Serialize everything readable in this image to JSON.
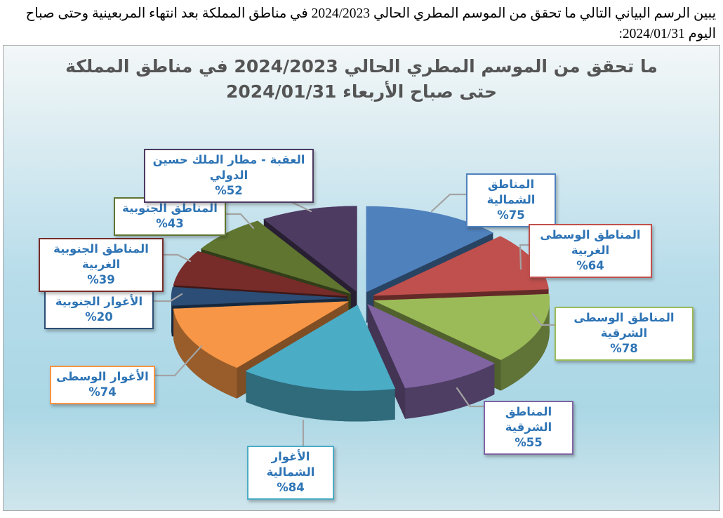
{
  "page": {
    "description_line1": "يبين الرسم البياني التالي ما تحقق من الموسم المطري الحالي 2024/2023 في مناطق المملكة بعد انتهاء المربعينية وحتى صباح",
    "description_line2": "اليوم 2024/01/31:"
  },
  "chart": {
    "title_line1": "ما تحقق من الموسم المطري الحالي 2024/2023 في مناطق المملكة",
    "title_line2": "حتى صباح الأربعاء 2024/01/31"
  },
  "chart_data": {
    "type": "pie",
    "title": "ما تحقق من الموسم المطري الحالي 2024/2023 في مناطق المملكة حتى صباح الأربعاء 2024/01/31",
    "unit": "%",
    "effect": "3d-exploded",
    "start_angle_deg": 0,
    "direction": "clockwise",
    "legend_position": "none",
    "labels_style": "callout-boxes",
    "slices": [
      {
        "label": "المناطق الشمالية",
        "value": 75,
        "value_display": "%75",
        "color": "#4F81BD"
      },
      {
        "label": "المناطق الوسطى الغربية",
        "value": 64,
        "value_display": "%64",
        "color": "#C0504D"
      },
      {
        "label": "المناطق الوسطى الشرقية",
        "value": 78,
        "value_display": "%78",
        "color": "#9BBB59"
      },
      {
        "label": "المناطق الشرقية",
        "value": 55,
        "value_display": "%55",
        "color": "#8064A2"
      },
      {
        "label": "الأغوار الشمالية",
        "value": 84,
        "value_display": "%84",
        "color": "#4BACC6"
      },
      {
        "label": "الأغوار الوسطى",
        "value": 74,
        "value_display": "%74",
        "color": "#F79646"
      },
      {
        "label": "الأغوار الجنوبية",
        "value": 20,
        "value_display": "%20",
        "color": "#2C4D75"
      },
      {
        "label": "المناطق الجنوبية الغربية",
        "value": 39,
        "value_display": "%39",
        "color": "#772C2A"
      },
      {
        "label": "المناطق الجنوبية",
        "value": 43,
        "value_display": "%43",
        "color": "#5F7530"
      },
      {
        "label": "العقبة - مطار الملك حسين الدولي",
        "value": 52,
        "value_display": "%52",
        "color": "#4D3B62"
      }
    ]
  }
}
